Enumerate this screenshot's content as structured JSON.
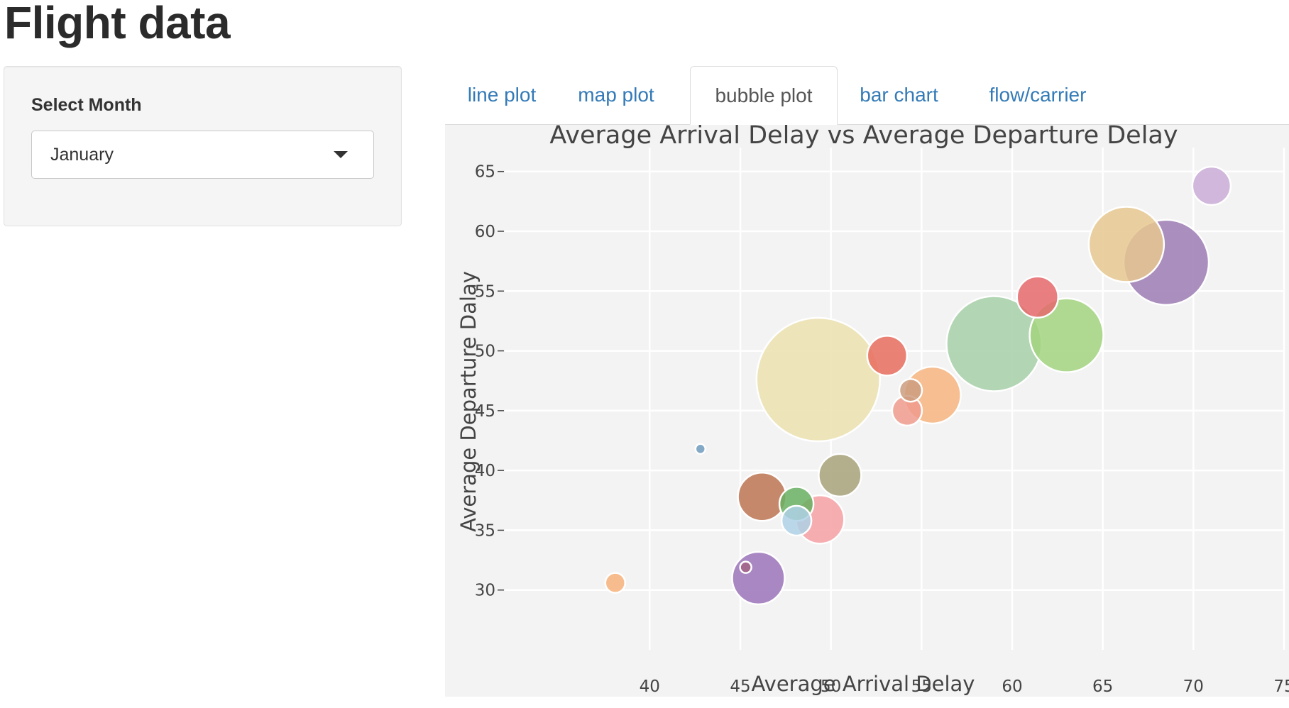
{
  "page": {
    "title": "Flight data"
  },
  "sidebar": {
    "select_label": "Select Month",
    "month": {
      "value": "January",
      "options": [
        "January"
      ]
    }
  },
  "tabs": [
    {
      "label": "line plot",
      "active": false
    },
    {
      "label": "map plot",
      "active": false
    },
    {
      "label": "bubble plot",
      "active": true
    },
    {
      "label": "bar chart",
      "active": false
    },
    {
      "label": "flow/carrier",
      "active": false
    }
  ],
  "chart_data": {
    "type": "scatter",
    "title": "Average Arrival Delay vs Average Departure Delay",
    "xlabel": "Average Arrival Delay",
    "ylabel": "Average Departure Dalay",
    "xlim": [
      32,
      75
    ],
    "ylim": [
      25,
      67
    ],
    "xticks": [
      40,
      45,
      50,
      55,
      60,
      65,
      70,
      75
    ],
    "yticks": [
      30,
      35,
      40,
      45,
      50,
      55,
      60,
      65
    ],
    "grid": true,
    "background": "#f3f3f3",
    "gridcolor": "#ffffff",
    "points": [
      {
        "x": 49.3,
        "y": 47.6,
        "r": 87,
        "color": "#ebe0ae"
      },
      {
        "x": 59.0,
        "y": 50.6,
        "r": 67,
        "color": "#a6cfa7"
      },
      {
        "x": 68.5,
        "y": 57.4,
        "r": 60,
        "color": "#9c7bb3"
      },
      {
        "x": 66.3,
        "y": 58.9,
        "r": 53,
        "color": "#e6c78f"
      },
      {
        "x": 63.0,
        "y": 51.3,
        "r": 52,
        "color": "#a2d47f"
      },
      {
        "x": 55.6,
        "y": 46.3,
        "r": 40,
        "color": "#f6b47f"
      },
      {
        "x": 46.0,
        "y": 31.0,
        "r": 37,
        "color": "#9a73b8"
      },
      {
        "x": 46.2,
        "y": 37.8,
        "r": 34,
        "color": "#bd7452"
      },
      {
        "x": 49.4,
        "y": 35.9,
        "r": 34,
        "color": "#f4a0a3"
      },
      {
        "x": 50.5,
        "y": 39.6,
        "r": 30,
        "color": "#a7a27a"
      },
      {
        "x": 61.4,
        "y": 54.5,
        "r": 29,
        "color": "#e5696b"
      },
      {
        "x": 53.1,
        "y": 49.6,
        "r": 28,
        "color": "#e86c5e"
      },
      {
        "x": 48.1,
        "y": 37.2,
        "r": 24,
        "color": "#68b062"
      },
      {
        "x": 48.1,
        "y": 35.8,
        "r": 21,
        "color": "#aed1e6"
      },
      {
        "x": 71.0,
        "y": 63.8,
        "r": 27,
        "color": "#c9abd6"
      },
      {
        "x": 54.2,
        "y": 45.0,
        "r": 21,
        "color": "#ef9b8c"
      },
      {
        "x": 54.4,
        "y": 46.7,
        "r": 16,
        "color": "#cd9e80"
      },
      {
        "x": 38.1,
        "y": 30.6,
        "r": 14,
        "color": "#f7b27a"
      },
      {
        "x": 42.8,
        "y": 41.8,
        "r": 7,
        "color": "#6f9bbe"
      },
      {
        "x": 45.3,
        "y": 31.9,
        "r": 8,
        "color": "#a36486"
      }
    ]
  }
}
